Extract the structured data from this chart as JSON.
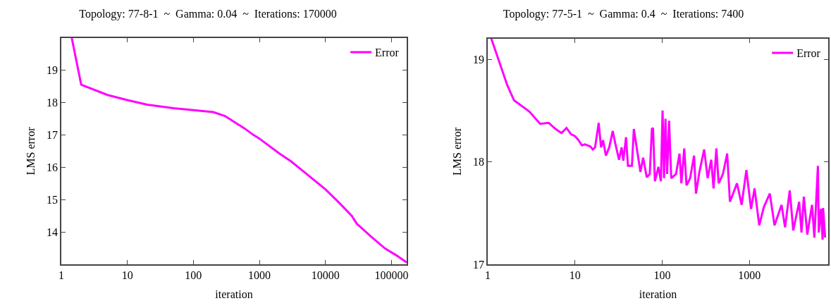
{
  "chart_data": [
    {
      "type": "line",
      "title": "Topology: 77-8-1  ~  Gamma: 0.04  ~  Iterations: 170000",
      "xlabel": "iteration",
      "ylabel": "LMS error",
      "log": "x",
      "xlim": [
        1,
        170000
      ],
      "ylim": [
        13,
        20
      ],
      "xticks": [
        1,
        10,
        100,
        1000,
        10000,
        100000
      ],
      "yticks": [
        14,
        15,
        16,
        17,
        18,
        19
      ],
      "grid": false,
      "legend": "top right",
      "marker": "none",
      "line_style": "solid",
      "series": [
        {
          "name": "Error",
          "color": "#ff00ff",
          "x": [
            1.44,
            2,
            5,
            10,
            20,
            50,
            100,
            200,
            300,
            600,
            800,
            1000,
            2000,
            3000,
            5000,
            10000,
            16000,
            25000,
            30000,
            50000,
            80000,
            120000,
            170000
          ],
          "values": [
            20.0,
            18.56,
            18.24,
            18.08,
            17.94,
            17.83,
            17.77,
            17.71,
            17.59,
            17.2,
            17.01,
            16.89,
            16.43,
            16.19,
            15.82,
            15.32,
            14.91,
            14.5,
            14.25,
            13.84,
            13.49,
            13.27,
            13.06
          ]
        }
      ]
    },
    {
      "type": "line",
      "title": "Topology: 77-5-1  ~  Gamma: 0.4  ~  Iterations: 7400",
      "xlabel": "iteration",
      "ylabel": "LMS error",
      "log": "x",
      "xlim": [
        1,
        8000
      ],
      "ylim": [
        17,
        19.2
      ],
      "xticks": [
        1,
        10,
        100,
        1000
      ],
      "yticks": [
        17,
        18,
        19
      ],
      "grid": false,
      "legend": "top right",
      "marker": "none",
      "line_style": "solid",
      "series": [
        {
          "name": "Error",
          "color": "#ff00ff",
          "x": [
            1.1,
            1.67,
            2,
            3,
            4,
            5,
            6,
            7,
            8,
            9,
            10,
            11,
            12,
            13,
            15,
            16,
            17,
            18.7,
            19.9,
            21,
            22.6,
            24.7,
            27.1,
            28.8,
            32,
            34.3,
            35.8,
            38.5,
            40.5,
            45,
            47.3,
            56.3,
            60.5,
            66.5,
            72,
            76.2,
            78.5,
            82.5,
            90.5,
            96.6,
            101,
            105,
            109,
            114,
            120,
            127,
            144,
            158,
            166,
            179,
            190,
            209,
            232,
            244,
            267,
            303,
            332,
            365,
            388,
            418,
            444,
            497,
            556,
            598,
            721,
            815,
            923,
            1045,
            1146,
            1297,
            1466,
            1714,
            1940,
            2335,
            2563,
            2900,
            3183,
            3718,
            3955,
            4205,
            4614,
            5222,
            5557,
            6099,
            6238,
            6607,
            6900,
            7000,
            7380
          ],
          "values": [
            19.2,
            18.75,
            18.6,
            18.49,
            18.37,
            18.38,
            18.32,
            18.28,
            18.33,
            18.27,
            18.25,
            18.21,
            18.16,
            18.17,
            18.15,
            18.12,
            18.14,
            18.38,
            18.14,
            18.21,
            18.06,
            18.14,
            18.3,
            18.19,
            18.02,
            18.14,
            18.01,
            18.24,
            17.96,
            17.96,
            18.32,
            17.9,
            18.04,
            17.85,
            17.88,
            18.32,
            18.33,
            17.81,
            17.95,
            17.81,
            18.5,
            17.84,
            18.42,
            17.88,
            18.4,
            17.84,
            17.88,
            18.08,
            17.79,
            18.13,
            17.77,
            17.84,
            18.06,
            17.69,
            17.9,
            18.12,
            17.84,
            18.02,
            17.74,
            18.13,
            17.79,
            17.88,
            18.08,
            17.61,
            17.79,
            17.58,
            17.92,
            17.54,
            17.74,
            17.38,
            17.56,
            17.69,
            17.38,
            17.58,
            17.36,
            17.72,
            17.33,
            17.61,
            17.31,
            17.66,
            17.29,
            17.58,
            17.26,
            17.96,
            17.31,
            17.54,
            17.24,
            17.55,
            17.26
          ]
        }
      ]
    }
  ]
}
